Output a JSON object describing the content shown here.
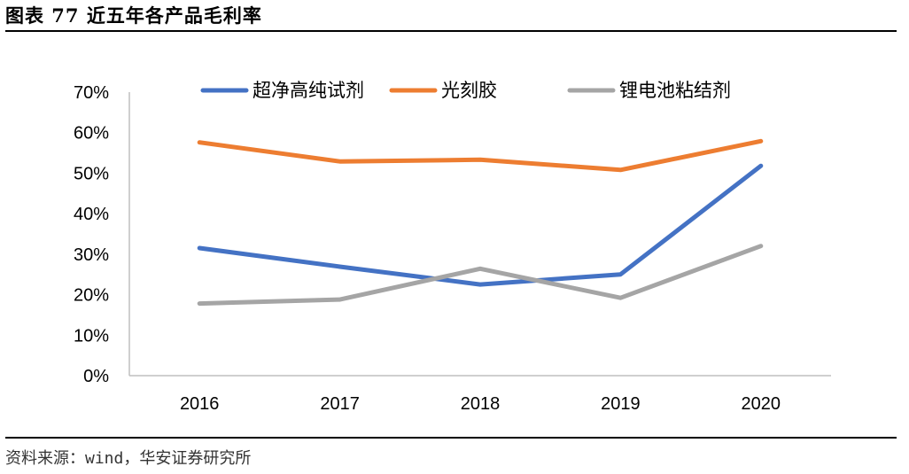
{
  "title": "图表 77 近五年各产品毛利率",
  "source": "资料来源：wind，华安证券研究所",
  "chart_data": {
    "type": "line",
    "categories": [
      "2016",
      "2017",
      "2018",
      "2019",
      "2020"
    ],
    "ylim": [
      0,
      70
    ],
    "yticks": [
      "0%",
      "10%",
      "20%",
      "30%",
      "40%",
      "50%",
      "60%",
      "70%"
    ],
    "grid": false,
    "legend_position": "top",
    "series": [
      {
        "name": "超净高纯试剂",
        "color": "#4472C4",
        "values": [
          31.5,
          26.9,
          22.5,
          25.0,
          51.8
        ]
      },
      {
        "name": "光刻胶",
        "color": "#ED7D31",
        "values": [
          57.6,
          52.9,
          53.3,
          50.8,
          57.9
        ]
      },
      {
        "name": "锂电池粘结剂",
        "color": "#A5A5A5",
        "values": [
          17.8,
          18.8,
          26.4,
          19.2,
          32.0
        ]
      }
    ]
  }
}
